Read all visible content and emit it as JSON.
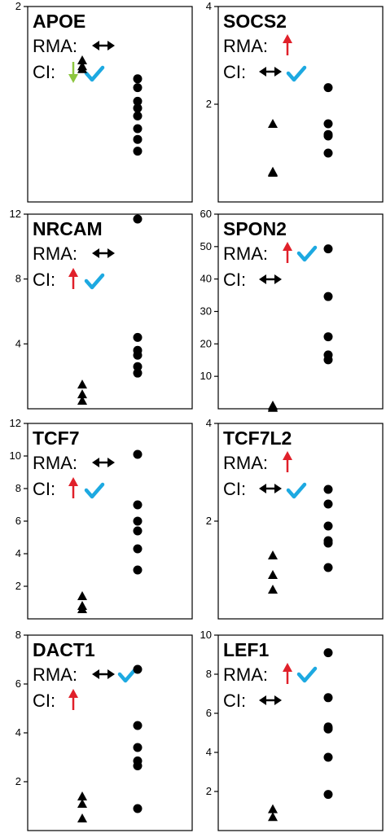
{
  "colors": {
    "up_arrow": "#e0202a",
    "down_arrow": "#8cc63f",
    "check": "#1da9e1",
    "both_arrow": "#000000",
    "marker": "#000000"
  },
  "chart_data": [
    {
      "type": "scatter",
      "gene": "APOE",
      "ylim": [
        0,
        2
      ],
      "yticks": [
        2
      ],
      "ytick_labels": [
        "2"
      ],
      "annotations": {
        "rma_label": "RMA:",
        "rma_arrow": "both",
        "rma_check": false,
        "ci_label": "CI:",
        "ci_arrow": "down",
        "ci_check": true
      },
      "series": [
        {
          "marker": "triangle",
          "x": "group1",
          "values": [
            1.45,
            1.39,
            1.36
          ]
        },
        {
          "marker": "circle",
          "x": "group2",
          "values": [
            1.26,
            1.17,
            1.03,
            0.96,
            0.88,
            0.75,
            0.64,
            0.52
          ]
        }
      ]
    },
    {
      "type": "scatter",
      "gene": "SOCS2",
      "ylim": [
        0,
        4
      ],
      "yticks": [
        2,
        4
      ],
      "ytick_labels": [
        "2",
        "4"
      ],
      "annotations": {
        "rma_label": "RMA:",
        "rma_arrow": "up",
        "rma_check": false,
        "ci_label": "CI:",
        "ci_arrow": "both",
        "ci_check": true
      },
      "series": [
        {
          "marker": "triangle",
          "x": "group1",
          "values": [
            1.6,
            0.62,
            0.6
          ]
        },
        {
          "marker": "circle",
          "x": "group2",
          "values": [
            2.34,
            1.6,
            1.38,
            1.35,
            1.0
          ]
        }
      ]
    },
    {
      "type": "scatter",
      "gene": "NRCAM",
      "ylim": [
        0,
        12
      ],
      "yticks": [
        4,
        8,
        12
      ],
      "ytick_labels": [
        "4",
        "8",
        "12"
      ],
      "annotations": {
        "rma_label": "RMA:",
        "rma_arrow": "both",
        "rma_check": false,
        "ci_label": "CI:",
        "ci_arrow": "up",
        "ci_check": true
      },
      "series": [
        {
          "marker": "triangle",
          "x": "group1",
          "values": [
            1.5,
            0.9,
            0.5
          ]
        },
        {
          "marker": "circle",
          "x": "group2",
          "values": [
            11.7,
            4.4,
            3.6,
            3.3,
            2.6,
            2.2
          ]
        }
      ]
    },
    {
      "type": "scatter",
      "gene": "SPON2",
      "ylim": [
        0,
        60
      ],
      "yticks": [
        10,
        20,
        30,
        40,
        50,
        60
      ],
      "ytick_labels": [
        "10",
        "20",
        "30",
        "40",
        "50",
        "60"
      ],
      "annotations": {
        "rma_label": "RMA:",
        "rma_arrow": "up",
        "rma_check": true,
        "ci_label": "CI:",
        "ci_arrow": "both",
        "ci_check": false
      },
      "series": [
        {
          "marker": "triangle",
          "x": "group1",
          "values": [
            1.0,
            0.6,
            0.3
          ]
        },
        {
          "marker": "circle",
          "x": "group2",
          "values": [
            49.3,
            34.6,
            22.2,
            16.6,
            15.1
          ]
        }
      ]
    },
    {
      "type": "scatter",
      "gene": "TCF7",
      "ylim": [
        0,
        12
      ],
      "yticks": [
        2,
        4,
        6,
        8,
        10,
        12
      ],
      "ytick_labels": [
        "2",
        "4",
        "6",
        "8",
        "10",
        "12"
      ],
      "annotations": {
        "rma_label": "RMA:",
        "rma_arrow": "both",
        "rma_check": false,
        "ci_label": "CI:",
        "ci_arrow": "up",
        "ci_check": true
      },
      "series": [
        {
          "marker": "triangle",
          "x": "group1",
          "values": [
            1.4,
            0.8,
            0.6
          ]
        },
        {
          "marker": "circle",
          "x": "group2",
          "values": [
            10.1,
            7.0,
            6.0,
            5.4,
            4.3,
            3.0
          ]
        }
      ]
    },
    {
      "type": "scatter",
      "gene": "TCF7L2",
      "ylim": [
        0,
        4
      ],
      "yticks": [
        2,
        4
      ],
      "ytick_labels": [
        "2",
        "4"
      ],
      "annotations": {
        "rma_label": "RMA:",
        "rma_arrow": "up",
        "rma_check": false,
        "ci_label": "CI:",
        "ci_arrow": "both",
        "ci_check": true
      },
      "series": [
        {
          "marker": "triangle",
          "x": "group1",
          "values": [
            1.3,
            0.9,
            0.6
          ]
        },
        {
          "marker": "circle",
          "x": "group2",
          "values": [
            2.65,
            2.35,
            1.9,
            1.6,
            1.55,
            1.05
          ]
        }
      ]
    },
    {
      "type": "scatter",
      "gene": "DACT1",
      "ylim": [
        0,
        8
      ],
      "yticks": [
        2,
        4,
        6,
        8
      ],
      "ytick_labels": [
        "2",
        "4",
        "6",
        "8"
      ],
      "annotations": {
        "rma_label": "RMA:",
        "rma_arrow": "both",
        "rma_check": true,
        "ci_label": "CI:",
        "ci_arrow": "up",
        "ci_check": false
      },
      "series": [
        {
          "marker": "triangle",
          "x": "group1",
          "values": [
            1.4,
            1.1,
            0.5
          ]
        },
        {
          "marker": "circle",
          "x": "group2",
          "values": [
            6.6,
            4.3,
            3.4,
            2.85,
            2.65,
            0.9
          ]
        }
      ]
    },
    {
      "type": "scatter",
      "gene": "LEF1",
      "ylim": [
        0,
        10
      ],
      "yticks": [
        2,
        4,
        6,
        8,
        10
      ],
      "ytick_labels": [
        "2",
        "4",
        "6",
        "8",
        "10"
      ],
      "annotations": {
        "rma_label": "RMA:",
        "rma_arrow": "up",
        "rma_check": true,
        "ci_label": "CI:",
        "ci_arrow": "both",
        "ci_check": false
      },
      "series": [
        {
          "marker": "triangle",
          "x": "group1",
          "values": [
            1.1,
            0.7
          ]
        },
        {
          "marker": "circle",
          "x": "group2",
          "values": [
            9.1,
            6.8,
            5.3,
            5.2,
            3.75,
            1.85
          ]
        }
      ]
    }
  ]
}
